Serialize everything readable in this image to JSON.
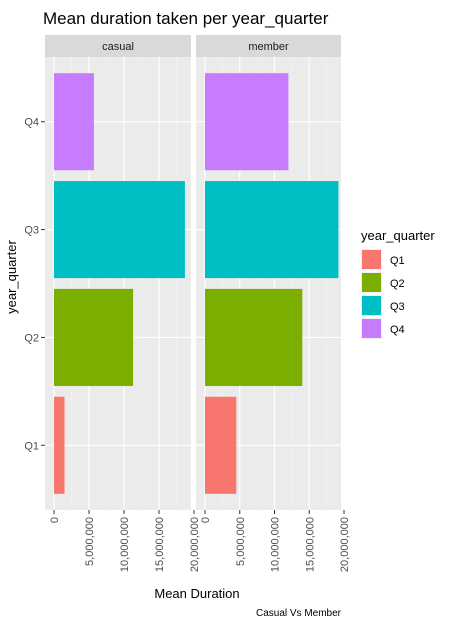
{
  "chart_data": {
    "type": "bar",
    "orientation": "horizontal",
    "title": "Mean duration taken per year_quarter",
    "xlabel": "Mean Duration",
    "ylabel": "year_quarter",
    "caption": "Casual Vs Member",
    "categories": [
      "Q1",
      "Q2",
      "Q3",
      "Q4"
    ],
    "xlim": [
      0,
      20000000
    ],
    "xticks": [
      0,
      5000000,
      10000000,
      15000000,
      20000000
    ],
    "xtick_labels": [
      "0",
      "5,000,000",
      "10,000,000",
      "15,000,000",
      "20,000,000"
    ],
    "grid": true,
    "legend": {
      "title": "year_quarter",
      "placement": "right",
      "entries": [
        "Q1",
        "Q2",
        "Q3",
        "Q4"
      ]
    },
    "colors": {
      "Q1": "#F8766D",
      "Q2": "#7CAE00",
      "Q3": "#00BFC4",
      "Q4": "#C77CFF"
    },
    "facets": [
      {
        "name": "casual",
        "values": {
          "Q1": 1500000,
          "Q2": 11300000,
          "Q3": 18700000,
          "Q4": 5700000
        }
      },
      {
        "name": "member",
        "values": {
          "Q1": 4500000,
          "Q2": 14000000,
          "Q3": 19200000,
          "Q4": 12000000
        }
      }
    ]
  }
}
